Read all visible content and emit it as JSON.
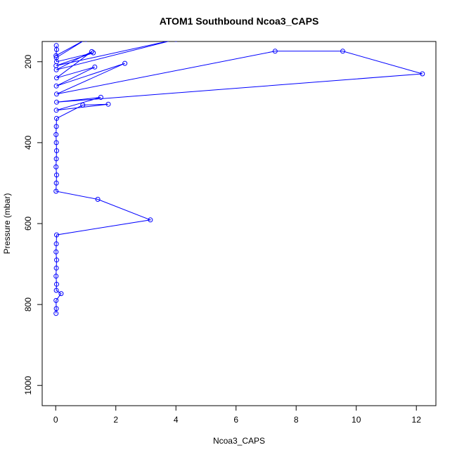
{
  "chart_data": {
    "type": "line",
    "title": "ATOM1 Southbound Ncoa3_CAPS",
    "xlabel": "Ncoa3_CAPS",
    "ylabel": "Pressure (mbar)",
    "xlim": [
      -0.45,
      12.65
    ],
    "ylim": [
      1050,
      150
    ],
    "y_reversed": true,
    "xticks": [
      0,
      2,
      4,
      6,
      8,
      10,
      12
    ],
    "yticks": [
      200,
      400,
      600,
      800,
      1000
    ],
    "xtick_labels": [
      "0",
      "2",
      "4",
      "6",
      "8",
      "10",
      "12"
    ],
    "ytick_labels": [
      "200",
      "400",
      "600",
      "800",
      "1000"
    ],
    "grid": false,
    "legend": "none",
    "marker": "open-circle",
    "color": "#0000ff",
    "series": [
      {
        "x": [
          0.02,
          0.03,
          0.01,
          1.0,
          0.02,
          0.03,
          1.25,
          0.01,
          4.0,
          0.02,
          1.2,
          0.03,
          1.3,
          0.02,
          2.3,
          0.03,
          7.3,
          9.55,
          12.2,
          0.03,
          1.5,
          0.02,
          1.75,
          0.9,
          0.03,
          0.02,
          0.01,
          0.02,
          0.03,
          0.02,
          0.01,
          0.03,
          0.02,
          0.01,
          1.4,
          3.15,
          0.03,
          0.02,
          0.01,
          0.03,
          0.02,
          0.01,
          0.03,
          0.02,
          0.18,
          0.01,
          0.02,
          0.01
        ],
        "y": [
          160,
          170,
          185,
          145,
          190,
          200,
          178,
          210,
          145,
          220,
          175,
          240,
          213,
          260,
          204,
          280,
          174,
          174,
          230,
          300,
          288,
          320,
          305,
          307,
          340,
          360,
          380,
          400,
          420,
          440,
          460,
          480,
          500,
          520,
          540,
          591,
          628,
          650,
          670,
          690,
          710,
          730,
          750,
          765,
          773,
          790,
          810,
          822
        ]
      }
    ]
  }
}
